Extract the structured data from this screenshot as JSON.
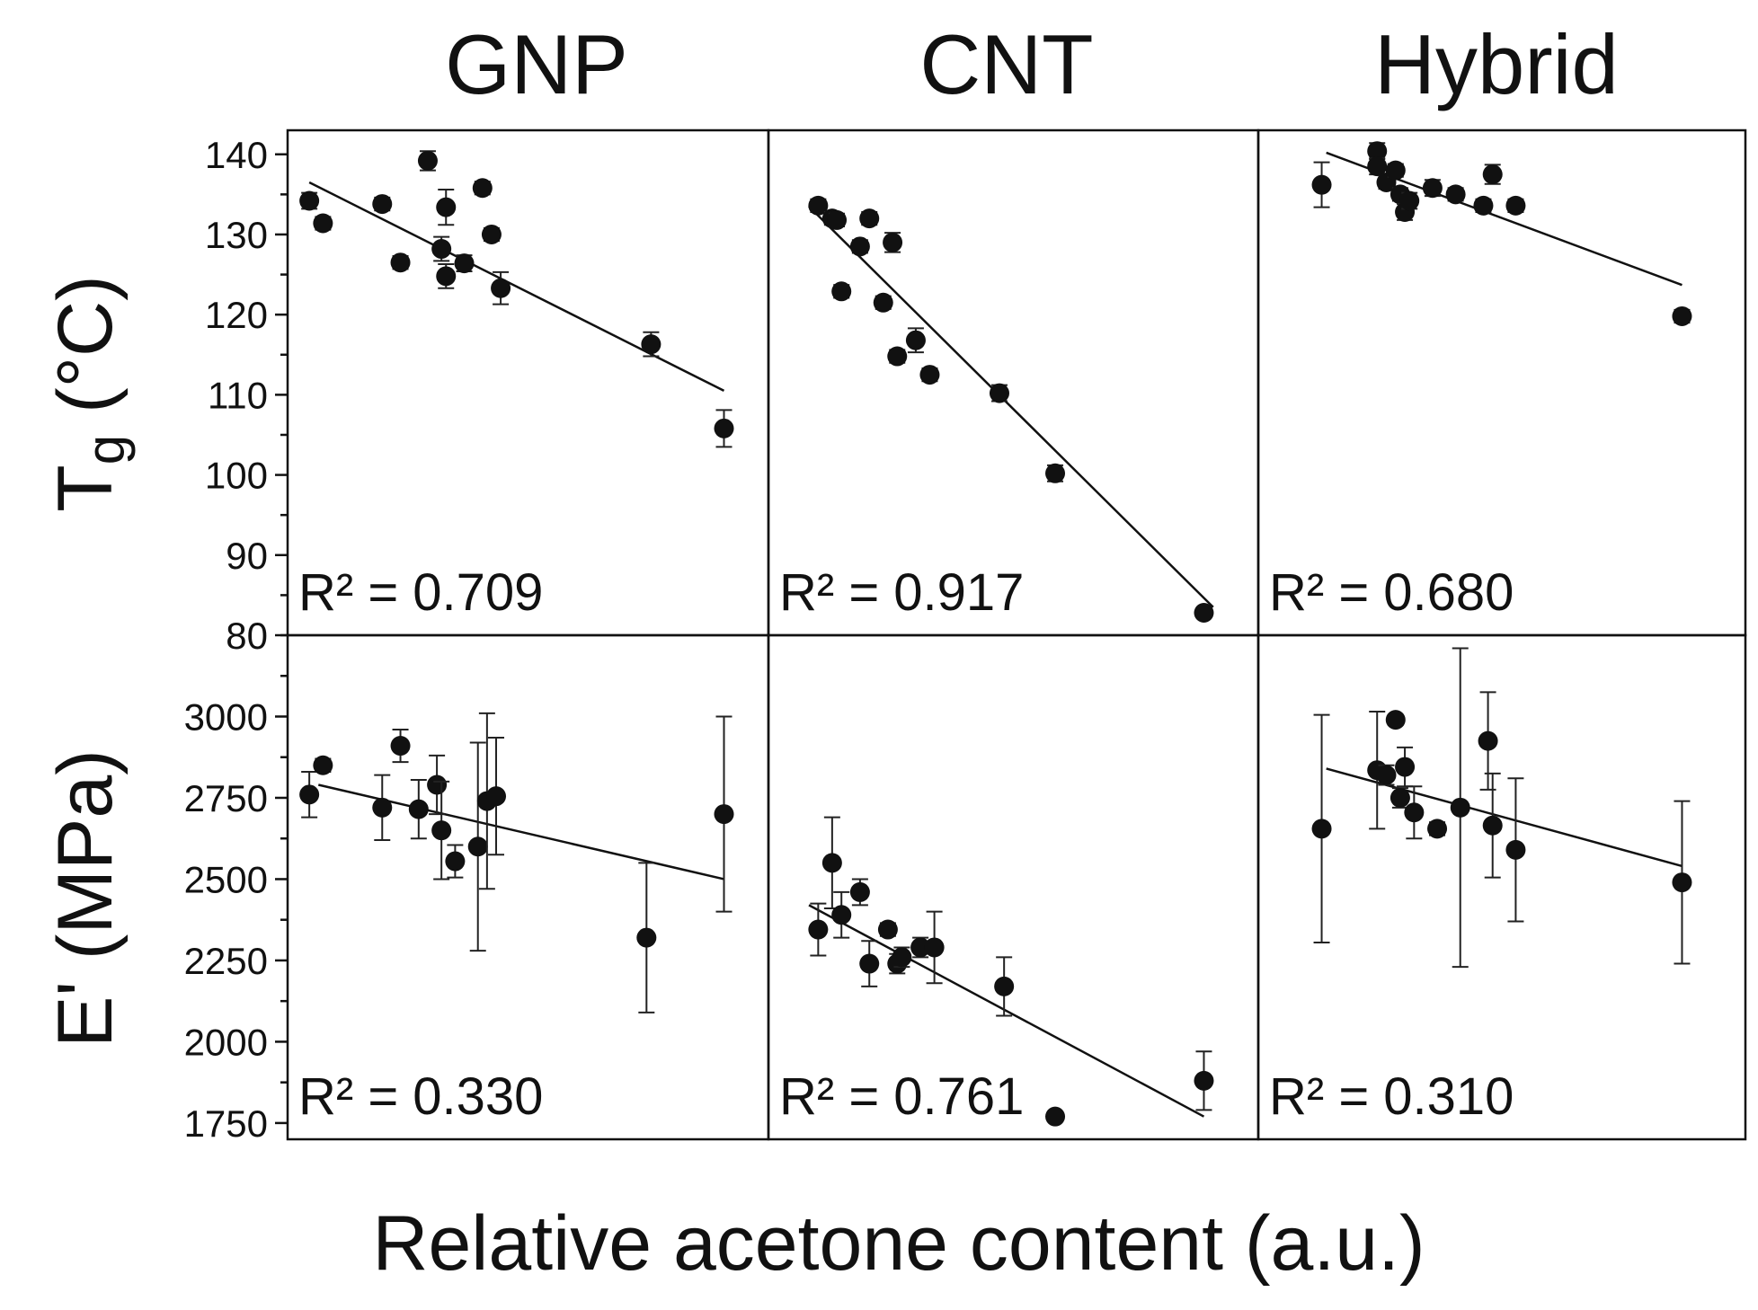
{
  "figure": {
    "xlabel": "Relative acetone content (a.u.)",
    "column_titles": [
      "GNP",
      "CNT",
      "Hybrid"
    ],
    "row_labels": {
      "top": {
        "base": "T",
        "sub": "g",
        "rest": " (°C)"
      },
      "bottom": "E' (MPa)"
    }
  },
  "chart_data": [
    {
      "type": "scatter",
      "panel": "GNP-Tg",
      "column": "GNP",
      "row": "Tg",
      "xlim": [
        0,
        1
      ],
      "ylim": [
        80,
        143
      ],
      "yticks": [
        80,
        90,
        100,
        110,
        120,
        130,
        140
      ],
      "r2": "R² = 0.709",
      "fit": {
        "x": [
          0.02,
          0.93
        ],
        "y": [
          136.5,
          110.5
        ]
      },
      "points": [
        {
          "x": 0.02,
          "y": 134.2,
          "err": 1.0
        },
        {
          "x": 0.05,
          "y": 131.4,
          "err": 0.8
        },
        {
          "x": 0.18,
          "y": 133.8,
          "err": 0.8
        },
        {
          "x": 0.22,
          "y": 126.5,
          "err": 0.8
        },
        {
          "x": 0.28,
          "y": 139.2,
          "err": 1.2
        },
        {
          "x": 0.31,
          "y": 128.2,
          "err": 1.5
        },
        {
          "x": 0.32,
          "y": 133.4,
          "err": 2.2
        },
        {
          "x": 0.32,
          "y": 124.8,
          "err": 1.5
        },
        {
          "x": 0.36,
          "y": 126.4,
          "err": 1.0
        },
        {
          "x": 0.4,
          "y": 135.8,
          "err": 0.8
        },
        {
          "x": 0.42,
          "y": 130.0,
          "err": 0.8
        },
        {
          "x": 0.44,
          "y": 123.3,
          "err": 2.0
        },
        {
          "x": 0.77,
          "y": 116.3,
          "err": 1.5
        },
        {
          "x": 0.93,
          "y": 105.8,
          "err": 2.3
        }
      ]
    },
    {
      "type": "scatter",
      "panel": "CNT-Tg",
      "column": "CNT",
      "row": "Tg",
      "xlim": [
        0,
        1
      ],
      "ylim": [
        80,
        143
      ],
      "yticks": [
        80,
        90,
        100,
        110,
        120,
        130,
        140
      ],
      "r2": "R² = 0.917",
      "fit": {
        "x": [
          0.06,
          0.93
        ],
        "y": [
          133.5,
          83.5
        ]
      },
      "points": [
        {
          "x": 0.08,
          "y": 133.6,
          "err": 0.8
        },
        {
          "x": 0.11,
          "y": 132.0,
          "err": 0.8
        },
        {
          "x": 0.12,
          "y": 131.8,
          "err": 0.8
        },
        {
          "x": 0.13,
          "y": 122.9,
          "err": 0.8
        },
        {
          "x": 0.17,
          "y": 128.5,
          "err": 0.8
        },
        {
          "x": 0.19,
          "y": 132.0,
          "err": 0.8
        },
        {
          "x": 0.22,
          "y": 121.5,
          "err": 0.8
        },
        {
          "x": 0.24,
          "y": 129.0,
          "err": 1.2
        },
        {
          "x": 0.25,
          "y": 114.8,
          "err": 0.8
        },
        {
          "x": 0.29,
          "y": 116.8,
          "err": 1.5
        },
        {
          "x": 0.32,
          "y": 112.5,
          "err": 0.8
        },
        {
          "x": 0.47,
          "y": 110.2,
          "err": 1.0
        },
        {
          "x": 0.59,
          "y": 100.2,
          "err": 1.0
        },
        {
          "x": 0.91,
          "y": 82.8,
          "err": 0.5
        }
      ]
    },
    {
      "type": "scatter",
      "panel": "Hybrid-Tg",
      "column": "Hybrid",
      "row": "Tg",
      "xlim": [
        0,
        1
      ],
      "ylim": [
        80,
        143
      ],
      "yticks": [
        80,
        90,
        100,
        110,
        120,
        130,
        140
      ],
      "r2": "R² = 0.680",
      "fit": {
        "x": [
          0.12,
          0.89
        ],
        "y": [
          140.2,
          123.7
        ]
      },
      "points": [
        {
          "x": 0.11,
          "y": 136.2,
          "err": 2.8
        },
        {
          "x": 0.23,
          "y": 140.4,
          "err": 1.0
        },
        {
          "x": 0.23,
          "y": 138.5,
          "err": 1.0
        },
        {
          "x": 0.25,
          "y": 136.5,
          "err": 0.8
        },
        {
          "x": 0.27,
          "y": 138.0,
          "err": 0.8
        },
        {
          "x": 0.28,
          "y": 135.0,
          "err": 0.8
        },
        {
          "x": 0.29,
          "y": 132.8,
          "err": 1.0
        },
        {
          "x": 0.3,
          "y": 134.2,
          "err": 1.0
        },
        {
          "x": 0.35,
          "y": 135.8,
          "err": 1.0
        },
        {
          "x": 0.4,
          "y": 135.0,
          "err": 0.8
        },
        {
          "x": 0.46,
          "y": 133.6,
          "err": 0.8
        },
        {
          "x": 0.48,
          "y": 137.5,
          "err": 1.2
        },
        {
          "x": 0.53,
          "y": 133.6,
          "err": 0.8
        },
        {
          "x": 0.89,
          "y": 119.8,
          "err": 0.8
        }
      ]
    },
    {
      "type": "scatter",
      "panel": "GNP-E",
      "column": "GNP",
      "row": "E'",
      "xlim": [
        0,
        1
      ],
      "ylim": [
        1700,
        3250
      ],
      "yticks": [
        1750,
        2000,
        2250,
        2500,
        2750,
        3000
      ],
      "r2": "R² = 0.330",
      "fit": {
        "x": [
          0.04,
          0.93
        ],
        "y": [
          2790,
          2500
        ]
      },
      "points": [
        {
          "x": 0.02,
          "y": 2760,
          "err": 70
        },
        {
          "x": 0.05,
          "y": 2850,
          "err": 20
        },
        {
          "x": 0.18,
          "y": 2720,
          "err": 100
        },
        {
          "x": 0.22,
          "y": 2910,
          "err": 50
        },
        {
          "x": 0.26,
          "y": 2715,
          "err": 90
        },
        {
          "x": 0.3,
          "y": 2790,
          "err": 90
        },
        {
          "x": 0.31,
          "y": 2650,
          "err": 150
        },
        {
          "x": 0.34,
          "y": 2555,
          "err": 50
        },
        {
          "x": 0.39,
          "y": 2600,
          "err": 320
        },
        {
          "x": 0.41,
          "y": 2740,
          "err": 270
        },
        {
          "x": 0.43,
          "y": 2755,
          "err": 180
        },
        {
          "x": 0.76,
          "y": 2320,
          "err": 230
        },
        {
          "x": 0.93,
          "y": 2700,
          "err": 300
        }
      ]
    },
    {
      "type": "scatter",
      "panel": "CNT-E",
      "column": "CNT",
      "row": "E'",
      "xlim": [
        0,
        1
      ],
      "ylim": [
        1700,
        3250
      ],
      "yticks": [
        1750,
        2000,
        2250,
        2500,
        2750,
        3000
      ],
      "r2": "R² = 0.761",
      "fit": {
        "x": [
          0.06,
          0.91
        ],
        "y": [
          2420,
          1770
        ]
      },
      "points": [
        {
          "x": 0.08,
          "y": 2345,
          "err": 80
        },
        {
          "x": 0.11,
          "y": 2550,
          "err": 140
        },
        {
          "x": 0.13,
          "y": 2390,
          "err": 70
        },
        {
          "x": 0.17,
          "y": 2460,
          "err": 40
        },
        {
          "x": 0.19,
          "y": 2240,
          "err": 70
        },
        {
          "x": 0.23,
          "y": 2345,
          "err": 20
        },
        {
          "x": 0.25,
          "y": 2240,
          "err": 30
        },
        {
          "x": 0.26,
          "y": 2260,
          "err": 30
        },
        {
          "x": 0.3,
          "y": 2290,
          "err": 30
        },
        {
          "x": 0.33,
          "y": 2290,
          "err": 110
        },
        {
          "x": 0.48,
          "y": 2170,
          "err": 90
        },
        {
          "x": 0.59,
          "y": 1770,
          "err": 10
        },
        {
          "x": 0.91,
          "y": 1880,
          "err": 90
        }
      ]
    },
    {
      "type": "scatter",
      "panel": "Hybrid-E",
      "column": "Hybrid",
      "row": "E'",
      "xlim": [
        0,
        1
      ],
      "ylim": [
        1700,
        3250
      ],
      "yticks": [
        1750,
        2000,
        2250,
        2500,
        2750,
        3000
      ],
      "r2": "R² = 0.310",
      "fit": {
        "x": [
          0.12,
          0.89
        ],
        "y": [
          2840,
          2540
        ]
      },
      "points": [
        {
          "x": 0.11,
          "y": 2655,
          "err": 350
        },
        {
          "x": 0.23,
          "y": 2835,
          "err": 180
        },
        {
          "x": 0.25,
          "y": 2820,
          "err": 30
        },
        {
          "x": 0.27,
          "y": 2990,
          "err": 15
        },
        {
          "x": 0.28,
          "y": 2750,
          "err": 30
        },
        {
          "x": 0.29,
          "y": 2845,
          "err": 60
        },
        {
          "x": 0.31,
          "y": 2705,
          "err": 80
        },
        {
          "x": 0.36,
          "y": 2655,
          "err": 20
        },
        {
          "x": 0.41,
          "y": 2720,
          "err": 490
        },
        {
          "x": 0.47,
          "y": 2925,
          "err": 150
        },
        {
          "x": 0.48,
          "y": 2665,
          "err": 160
        },
        {
          "x": 0.53,
          "y": 2590,
          "err": 220
        },
        {
          "x": 0.89,
          "y": 2490,
          "err": 250
        }
      ]
    }
  ]
}
